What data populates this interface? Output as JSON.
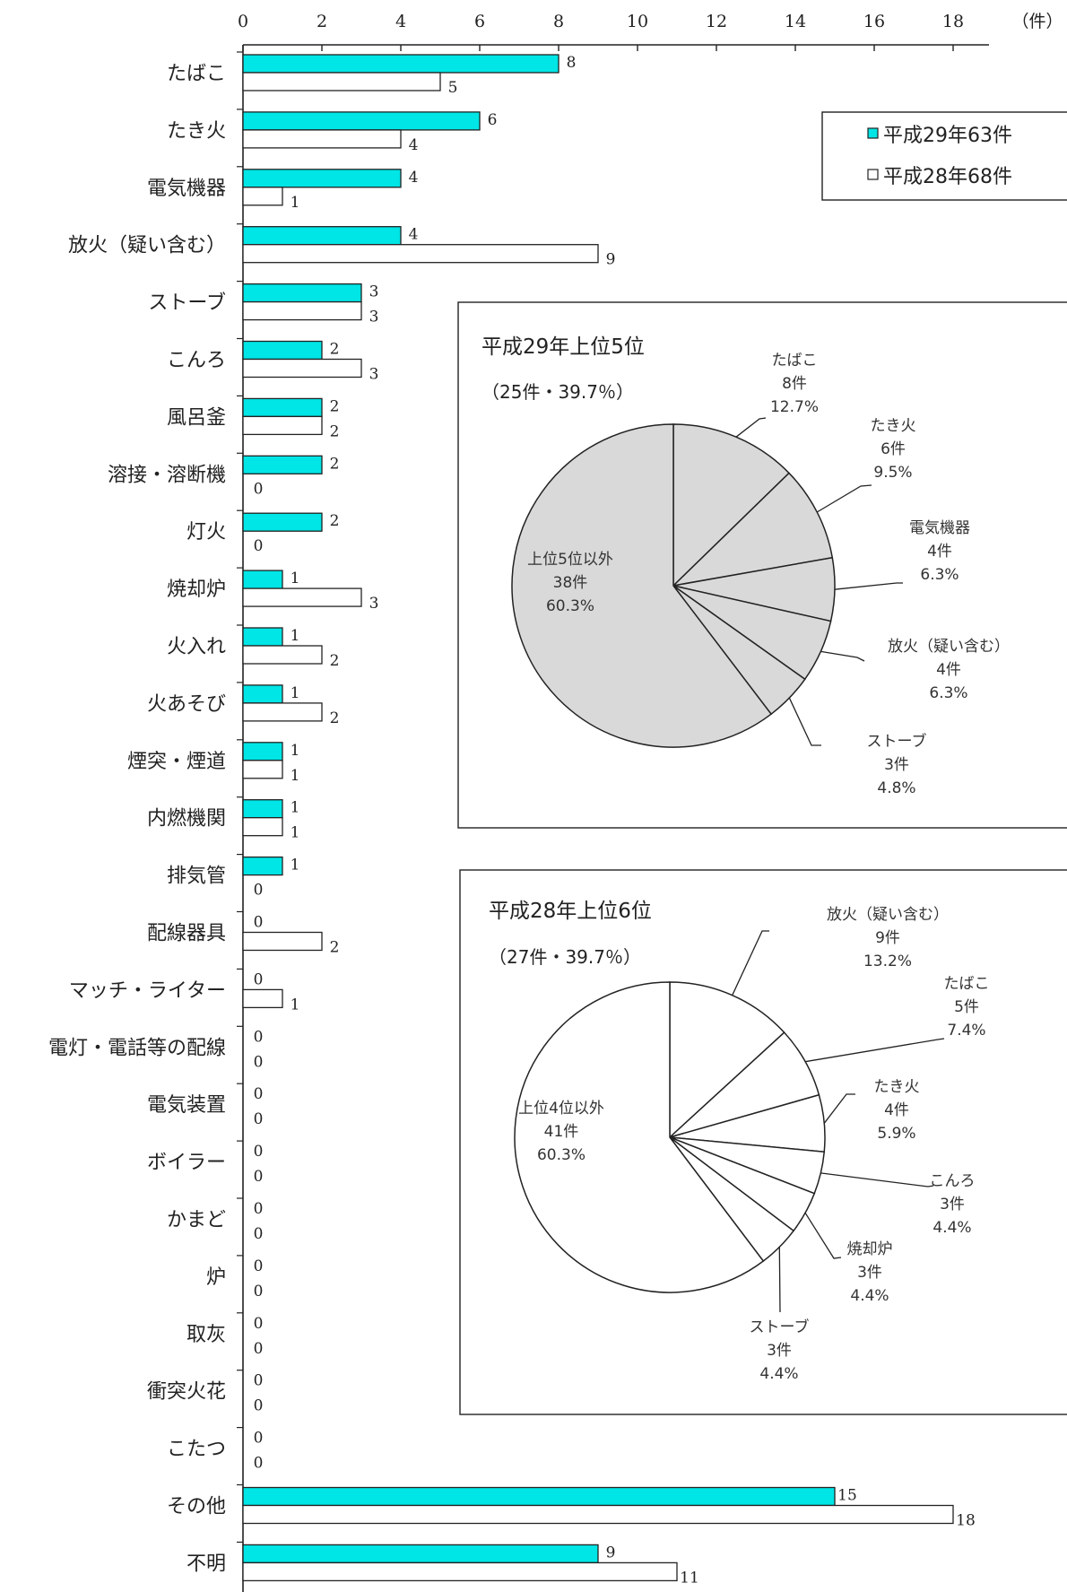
{
  "chart_data": [
    {
      "type": "bar",
      "orientation": "horizontal",
      "unit": "（件）",
      "xlim": [
        0,
        18
      ],
      "xticks": [
        "0",
        "2",
        "4",
        "6",
        "8",
        "10",
        "12",
        "14",
        "16",
        "18"
      ],
      "categories": [
        "たばこ",
        "たき火",
        "電気機器",
        "放火（疑い含む）",
        "ストーブ",
        "こんろ",
        "風呂釜",
        "溶接・溶断機",
        "灯火",
        "焼却炉",
        "火入れ",
        "火あそび",
        "煙突・煙道",
        "内燃機関",
        "排気管",
        "配線器具",
        "マッチ・ライター",
        "電灯・電話等の配線",
        "電気装置",
        "ボイラー",
        "かまど",
        "炉",
        "取灰",
        "衝突火花",
        "こたつ",
        "その他",
        "不明"
      ],
      "series": [
        {
          "name": "平成29年63件",
          "color": "#00e5e5",
          "values": [
            8,
            6,
            4,
            4,
            3,
            2,
            2,
            2,
            2,
            1,
            1,
            1,
            1,
            1,
            1,
            0,
            0,
            0,
            0,
            0,
            0,
            0,
            0,
            0,
            0,
            15,
            9
          ]
        },
        {
          "name": "平成28年68件",
          "color": "#ffffff",
          "values": [
            5,
            4,
            1,
            9,
            3,
            3,
            2,
            0,
            0,
            3,
            2,
            2,
            1,
            1,
            0,
            2,
            1,
            0,
            0,
            0,
            0,
            0,
            0,
            0,
            0,
            18,
            11
          ]
        }
      ],
      "legend": [
        "平成29年63件",
        "平成28年68件"
      ],
      "legend_position": "top-right",
      "grid": false
    },
    {
      "type": "pie",
      "title": "平成29年上位5位",
      "subtitle": "（25件・39.7％）",
      "fill": "#d9d9d9",
      "slices": [
        {
          "label": "たばこ",
          "count": "8件",
          "value": 12.7,
          "pct": "12.7%"
        },
        {
          "label": "たき火",
          "count": "6件",
          "value": 9.5,
          "pct": "9.5%"
        },
        {
          "label": "電気機器",
          "count": "4件",
          "value": 6.3,
          "pct": "6.3%"
        },
        {
          "label": "放火（疑い含む）",
          "count": "4件",
          "value": 6.3,
          "pct": "6.3%"
        },
        {
          "label": "ストーブ",
          "count": "3件",
          "value": 4.8,
          "pct": "4.8%"
        },
        {
          "label": "上位5位以外",
          "count": "38件",
          "value": 60.3,
          "pct": "60.3%"
        }
      ]
    },
    {
      "type": "pie",
      "title": "平成28年上位6位",
      "subtitle": "（27件・39.7％）",
      "fill": "#ffffff",
      "slices": [
        {
          "label": "放火（疑い含む）",
          "count": "9件",
          "value": 13.2,
          "pct": "13.2%"
        },
        {
          "label": "たばこ",
          "count": "5件",
          "value": 7.4,
          "pct": "7.4%"
        },
        {
          "label": "たき火",
          "count": "4件",
          "value": 5.9,
          "pct": "5.9%"
        },
        {
          "label": "こんろ",
          "count": "3件",
          "value": 4.4,
          "pct": "4.4%"
        },
        {
          "label": "焼却炉",
          "count": "3件",
          "value": 4.4,
          "pct": "4.4%"
        },
        {
          "label": "ストーブ",
          "count": "3件",
          "value": 4.4,
          "pct": "4.4%"
        },
        {
          "label": "上位4位以外",
          "count": "41件",
          "value": 60.3,
          "pct": "60.3%"
        }
      ]
    }
  ]
}
